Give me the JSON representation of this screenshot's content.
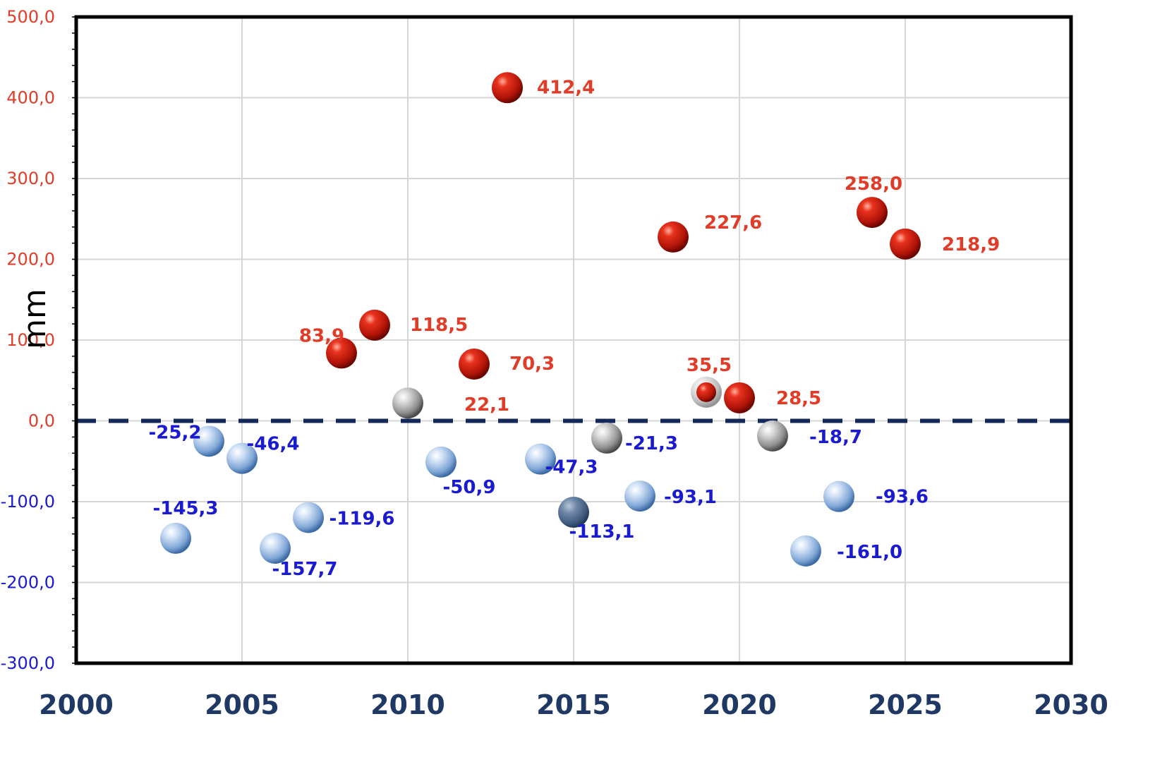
{
  "chart_data": {
    "type": "scatter",
    "ylabel": "mm",
    "xlim": [
      2000,
      2030
    ],
    "ylim": [
      -300,
      500
    ],
    "x_ticks": [
      "2000",
      "2005",
      "2010",
      "2015",
      "2020",
      "2025",
      "2030"
    ],
    "y_ticks": [
      "500,0",
      "400,0",
      "300,0",
      "200,0",
      "100,0",
      "0,0",
      "-100,0",
      "-200,0",
      "-300,0"
    ],
    "grid": true,
    "reference_line": {
      "y": 0,
      "style": "dashed",
      "color": "#14285a"
    },
    "colors": {
      "above": "#cc1a10",
      "near_zero": "#9a9a9a",
      "below": "#8fb4df",
      "below_dark": "#4e6b8f",
      "positive_label": "#e03c28",
      "negative_label": "#1a1ad0",
      "x_tick_label": "#1f3864"
    },
    "points": [
      {
        "x": 2003,
        "y": -145.3,
        "label": "-145,3",
        "kind": "below"
      },
      {
        "x": 2004,
        "y": -25.2,
        "label": "-25,2",
        "kind": "below"
      },
      {
        "x": 2005,
        "y": -46.4,
        "label": "-46,4",
        "kind": "below"
      },
      {
        "x": 2006,
        "y": -157.7,
        "label": "-157,7",
        "kind": "below"
      },
      {
        "x": 2007,
        "y": -119.6,
        "label": "-119,6",
        "kind": "below"
      },
      {
        "x": 2008,
        "y": 83.9,
        "label": "83,9",
        "kind": "above"
      },
      {
        "x": 2009,
        "y": 118.5,
        "label": "118,5",
        "kind": "above"
      },
      {
        "x": 2010,
        "y": 22.1,
        "label": "22,1",
        "kind": "near_zero"
      },
      {
        "x": 2011,
        "y": -50.9,
        "label": "-50,9",
        "kind": "below"
      },
      {
        "x": 2012,
        "y": 70.3,
        "label": "70,3",
        "kind": "above"
      },
      {
        "x": 2013,
        "y": 412.4,
        "label": "412,4",
        "kind": "above"
      },
      {
        "x": 2014,
        "y": -47.3,
        "label": "-47,3",
        "kind": "below"
      },
      {
        "x": 2015,
        "y": -113.1,
        "label": "-113,1",
        "kind": "below_dark"
      },
      {
        "x": 2016,
        "y": -21.3,
        "label": "-21,3",
        "kind": "near_zero"
      },
      {
        "x": 2017,
        "y": -93.1,
        "label": "-93,1",
        "kind": "below"
      },
      {
        "x": 2018,
        "y": 227.6,
        "label": "227,6",
        "kind": "above"
      },
      {
        "x": 2019,
        "y": 35.5,
        "label": "35,5",
        "kind": "above_small"
      },
      {
        "x": 2020,
        "y": 28.5,
        "label": "28,5",
        "kind": "above"
      },
      {
        "x": 2021,
        "y": -18.7,
        "label": "-18,7",
        "kind": "near_zero"
      },
      {
        "x": 2022,
        "y": -161.0,
        "label": "-161,0",
        "kind": "below"
      },
      {
        "x": 2023,
        "y": -93.6,
        "label": "-93,6",
        "kind": "below"
      },
      {
        "x": 2024,
        "y": 258.0,
        "label": "258,0",
        "kind": "above"
      },
      {
        "x": 2025,
        "y": 218.9,
        "label": "218,9",
        "kind": "above"
      }
    ]
  }
}
